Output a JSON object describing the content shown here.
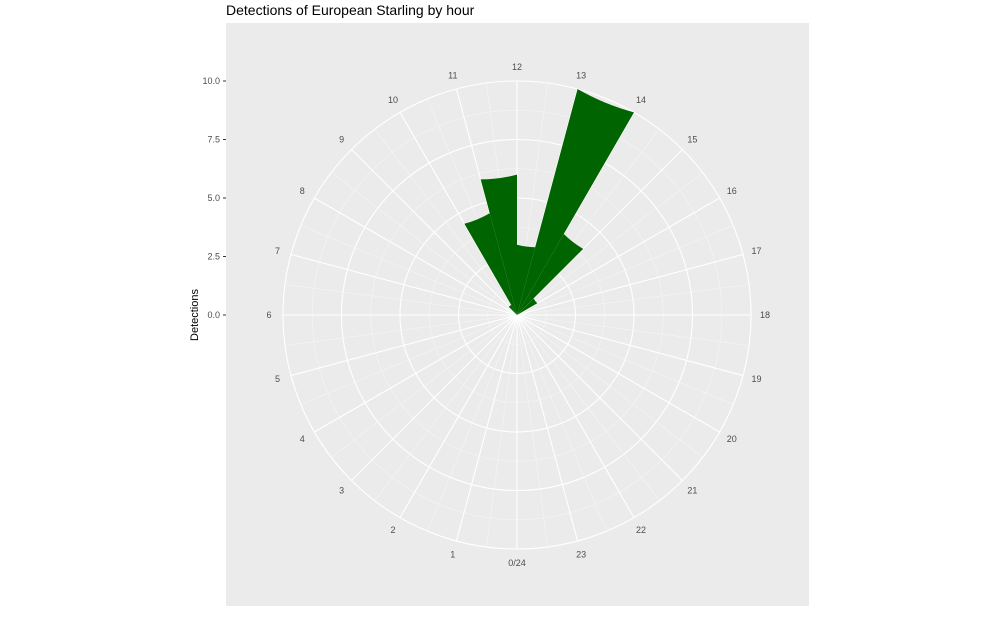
{
  "chart_data": {
    "type": "bar",
    "polar": true,
    "title": "Detections of European Starling by hour",
    "xlabel": "",
    "ylabel": "Detections",
    "ylim": [
      0,
      10
    ],
    "yticks": [
      "0.0",
      "2.5",
      "5.0",
      "7.5",
      "10.0"
    ],
    "ytick_values": [
      0,
      2.5,
      5,
      7.5,
      10
    ],
    "hour_labels": [
      "0/24",
      "1",
      "2",
      "3",
      "4",
      "5",
      "6",
      "7",
      "8",
      "9",
      "10",
      "11",
      "12",
      "13",
      "14",
      "15",
      "16",
      "17",
      "18",
      "19",
      "20",
      "21",
      "22",
      "23"
    ],
    "categories": [
      "0",
      "1",
      "2",
      "3",
      "4",
      "5",
      "6",
      "7",
      "8",
      "9",
      "10",
      "11",
      "12",
      "13",
      "14",
      "15",
      "16",
      "17",
      "18",
      "19",
      "20",
      "21",
      "22",
      "23"
    ],
    "values": [
      0,
      0,
      0,
      0,
      0,
      0,
      0,
      0,
      0,
      0.5,
      4.5,
      6,
      3,
      10,
      4,
      1,
      0,
      0,
      0,
      0,
      0,
      0,
      0,
      0
    ],
    "bar_color": "#006400",
    "panel_color": "#ebebeb",
    "grid": true,
    "legend": "none"
  }
}
